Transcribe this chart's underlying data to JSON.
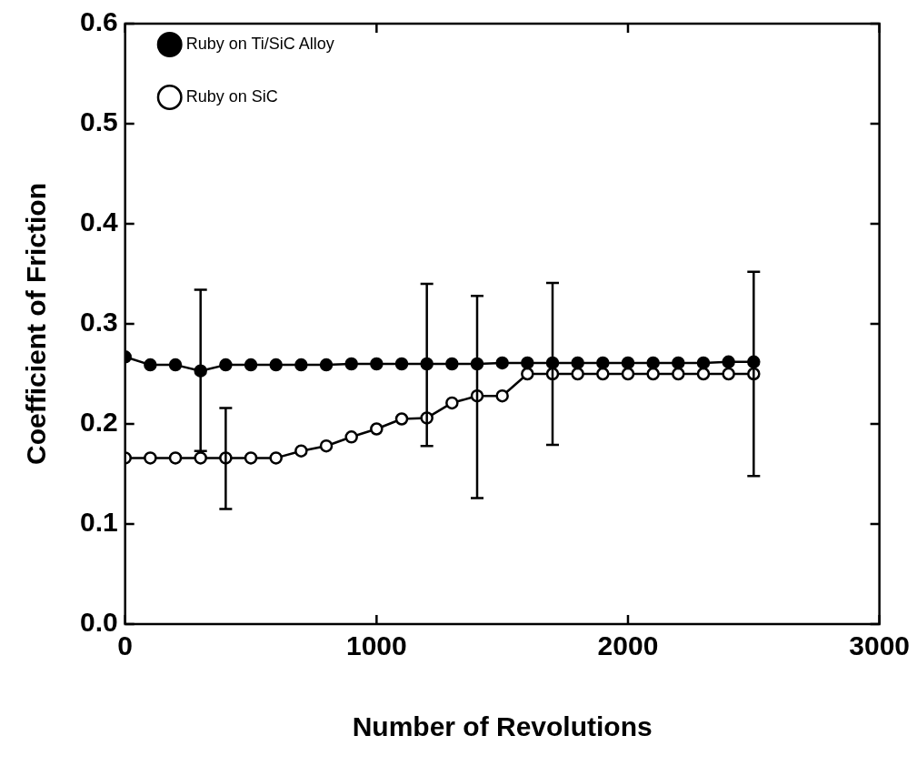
{
  "chart_data": {
    "type": "line",
    "xlabel": "Number of Revolutions",
    "ylabel": "Coefficient of Friction",
    "x": [
      0,
      100,
      200,
      300,
      400,
      500,
      600,
      700,
      800,
      900,
      1000,
      1100,
      1200,
      1300,
      1400,
      1500,
      1600,
      1700,
      1800,
      1900,
      2000,
      2100,
      2200,
      2300,
      2400,
      2500
    ],
    "series": [
      {
        "name": "Ruby on Ti/SiC Alloy",
        "color": "#000000",
        "values": [
          0.267,
          0.259,
          0.259,
          0.253,
          0.259,
          0.259,
          0.259,
          0.259,
          0.259,
          0.26,
          0.26,
          0.26,
          0.26,
          0.26,
          0.26,
          0.261,
          0.261,
          0.261,
          0.261,
          0.261,
          0.261,
          0.261,
          0.261,
          0.261,
          0.262,
          0.262
        ],
        "errors": [
          null,
          null,
          null,
          [
            0.173,
            0.334
          ],
          null,
          null,
          null,
          null,
          null,
          null,
          null,
          null,
          [
            0.178,
            0.34
          ],
          null,
          null,
          null,
          null,
          [
            0.179,
            0.341
          ],
          null,
          null,
          null,
          null,
          null,
          null,
          null,
          null
        ]
      },
      {
        "name": "Ruby on SiC",
        "color": "#000000",
        "values": [
          0.166,
          0.166,
          0.166,
          0.166,
          0.166,
          0.166,
          0.166,
          0.173,
          0.178,
          0.187,
          0.195,
          0.205,
          0.206,
          0.221,
          0.228,
          0.228,
          0.25,
          0.25,
          0.25,
          0.25,
          0.25,
          0.25,
          0.25,
          0.25,
          0.25,
          0.25
        ],
        "errors": [
          null,
          null,
          null,
          null,
          [
            0.115,
            0.216
          ],
          null,
          null,
          null,
          null,
          null,
          null,
          null,
          null,
          null,
          [
            0.126,
            0.328
          ],
          null,
          null,
          null,
          null,
          null,
          null,
          null,
          null,
          null,
          null,
          [
            0.148,
            0.352
          ]
        ]
      }
    ],
    "xlim": [
      0,
      3000
    ],
    "xticks": [
      0,
      1000,
      2000,
      3000
    ],
    "ylim": [
      0,
      0.6
    ],
    "yticks": [
      {
        "value": 0,
        "label": "0.0"
      },
      {
        "value": 0.1,
        "label": "0.1"
      },
      {
        "value": 0.2,
        "label": "0.2"
      },
      {
        "value": 0.3,
        "label": "0.3"
      },
      {
        "value": 0.4,
        "label": "0.4"
      },
      {
        "value": 0.5,
        "label": "0.5"
      },
      {
        "value": 0.6,
        "label": "0.6"
      }
    ],
    "grid": false,
    "legend": "top left",
    "marker": "circle",
    "line_style": "solid"
  }
}
